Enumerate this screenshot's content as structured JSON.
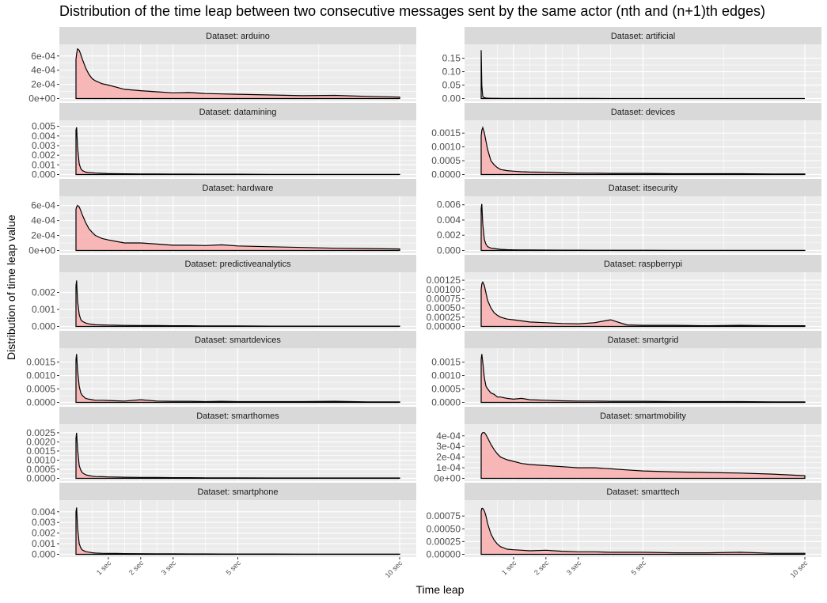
{
  "title": "Distribution of the time leap between two consecutive messages sent by the same actor (nth and (n+1)th edges)",
  "xlabel": "Time leap",
  "ylabel": "Distribution of time leap value",
  "colors": {
    "fill": "#f8b4b4",
    "line": "#000000",
    "strip": "#d9d9d9",
    "panel": "#ebebeb",
    "grid": "#ffffff"
  },
  "chart_data": {
    "type": "area",
    "x_unit": "seconds",
    "xlim": [
      0,
      10
    ],
    "x_ticks": [
      {
        "value": 1,
        "label": "1 sec"
      },
      {
        "value": 2,
        "label": "2 sec"
      },
      {
        "value": 3,
        "label": "3 sec"
      },
      {
        "value": 5,
        "label": "5 sec"
      },
      {
        "value": 10,
        "label": "10 sec"
      }
    ],
    "x": [
      0,
      0.02,
      0.05,
      0.1,
      0.15,
      0.2,
      0.3,
      0.4,
      0.5,
      0.6,
      0.8,
      1,
      1.25,
      1.5,
      2,
      2.5,
      3,
      3.5,
      4,
      4.5,
      5,
      6,
      7,
      8,
      9,
      10
    ],
    "panels": [
      {
        "strip": "Dataset: arduino",
        "ylim": [
          0,
          0.00072
        ],
        "ticks": [
          0,
          0.0002,
          0.0004,
          0.0006
        ],
        "tick_labels": [
          "0e+00",
          "2e-04",
          "4e-04",
          "6e-04"
        ],
        "y": [
          0.00055,
          0.00063,
          0.0007,
          0.00068,
          0.00062,
          0.00055,
          0.00043,
          0.00034,
          0.00028,
          0.00025,
          0.00021,
          0.00019,
          0.00016,
          0.00013,
          0.00011,
          9.5e-05,
          8e-05,
          8.5e-05,
          7e-05,
          6.5e-05,
          6e-05,
          5e-05,
          4e-05,
          4.5e-05,
          3e-05,
          2e-05
        ]
      },
      {
        "strip": "Dataset: artificial",
        "ylim": [
          0,
          0.19
        ],
        "ticks": [
          0,
          0.05,
          0.1,
          0.15
        ],
        "tick_labels": [
          "0.00",
          "0.05",
          "0.10",
          "0.15"
        ],
        "y": [
          0.18,
          0.05,
          0.008,
          0.003,
          0.002,
          0.0015,
          0.001,
          0.001,
          0.0008,
          0.0006,
          0.0005,
          0.0004,
          0.0003,
          0.0003,
          0.0002,
          0.0002,
          0.0002,
          0.0002,
          0.0001,
          0.0001,
          0.0001,
          0.0001,
          0.0001,
          0.0001,
          0.0001,
          0.0001
        ]
      },
      {
        "strip": "Dataset: datamining",
        "ylim": [
          0,
          0.0053
        ],
        "ticks": [
          0,
          0.001,
          0.002,
          0.003,
          0.004,
          0.005
        ],
        "tick_labels": [
          "0.000",
          "0.001",
          "0.002",
          "0.003",
          "0.004",
          "0.005"
        ],
        "y": [
          0.0046,
          0.0049,
          0.0028,
          0.0011,
          0.0006,
          0.0004,
          0.00025,
          0.0002,
          0.00018,
          0.00015,
          0.00012,
          0.0001,
          8e-05,
          7e-05,
          6e-05,
          5e-05,
          4e-05,
          4e-05,
          3e-05,
          3e-05,
          3e-05,
          2e-05,
          2e-05,
          2e-05,
          2e-05,
          2e-05
        ]
      },
      {
        "strip": "Dataset: devices",
        "ylim": [
          0,
          0.00185
        ],
        "ticks": [
          0,
          0.0005,
          0.001,
          0.0015
        ],
        "tick_labels": [
          "0.0000",
          "0.0005",
          "0.0010",
          "0.0015"
        ],
        "y": [
          0.0014,
          0.0016,
          0.0017,
          0.0015,
          0.0012,
          0.0009,
          0.0005,
          0.00035,
          0.00025,
          0.00018,
          0.00014,
          0.00012,
          0.0001,
          9e-05,
          8e-05,
          6e-05,
          5e-05,
          5e-05,
          4e-05,
          4e-05,
          4e-05,
          3e-05,
          3e-05,
          3e-05,
          2e-05,
          2e-05
        ]
      },
      {
        "strip": "Dataset: hardware",
        "ylim": [
          0,
          0.00068
        ],
        "ticks": [
          0,
          0.0002,
          0.0004,
          0.0006
        ],
        "tick_labels": [
          "0e+00",
          "2e-04",
          "4e-04",
          "6e-04"
        ],
        "y": [
          0.00055,
          0.00058,
          0.0006,
          0.00058,
          0.00053,
          0.00047,
          0.00037,
          0.00029,
          0.00024,
          0.0002,
          0.00016,
          0.00014,
          0.00012,
          0.0001,
          0.0001,
          8.5e-05,
          7e-05,
          7e-05,
          6.5e-05,
          7.5e-05,
          6e-05,
          5e-05,
          4e-05,
          3e-05,
          2.5e-05,
          2e-05
        ]
      },
      {
        "strip": "Dataset: itsecurity",
        "ylim": [
          0,
          0.0067
        ],
        "ticks": [
          0,
          0.002,
          0.004,
          0.006
        ],
        "tick_labels": [
          "0.000",
          "0.002",
          "0.004",
          "0.006"
        ],
        "y": [
          0.0055,
          0.0061,
          0.0035,
          0.0014,
          0.0008,
          0.0005,
          0.0003,
          0.00025,
          0.0002,
          0.00015,
          0.0001,
          8e-05,
          7e-05,
          6e-05,
          5e-05,
          4e-05,
          4e-05,
          3e-05,
          3e-05,
          3e-05,
          3e-05,
          2e-05,
          2e-05,
          2e-05,
          2e-05,
          2e-05
        ]
      },
      {
        "strip": "Dataset: predictiveanalytics",
        "ylim": [
          0,
          0.003
        ],
        "ticks": [
          0,
          0.001,
          0.002
        ],
        "tick_labels": [
          "0.000",
          "0.001",
          "0.002"
        ],
        "y": [
          0.0024,
          0.0027,
          0.0015,
          0.0007,
          0.0004,
          0.0003,
          0.0002,
          0.00015,
          0.00012,
          0.0001,
          9e-05,
          8e-05,
          7e-05,
          6e-05,
          5e-05,
          5e-05,
          4e-05,
          4e-05,
          3e-05,
          3e-05,
          3e-05,
          2e-05,
          2e-05,
          2e-05,
          2e-05,
          2e-05
        ]
      },
      {
        "strip": "Dataset: raspberrypi",
        "ylim": [
          0,
          0.00138
        ],
        "ticks": [
          0,
          0.00025,
          0.0005,
          0.00075,
          0.001,
          0.00125
        ],
        "tick_labels": [
          "0.00000",
          "0.00025",
          "0.00050",
          "0.00075",
          "0.00100",
          "0.00125"
        ],
        "y": [
          0.001,
          0.00115,
          0.0012,
          0.0011,
          0.0009,
          0.0007,
          0.0005,
          0.00037,
          0.0003,
          0.00025,
          0.0002,
          0.00018,
          0.00015,
          0.00012,
          0.0001,
          8e-05,
          7e-05,
          0.0001,
          0.00018,
          4e-05,
          3e-05,
          3e-05,
          2e-05,
          3e-05,
          2e-05,
          2e-05
        ]
      },
      {
        "strip": "Dataset: smartdevices",
        "ylim": [
          0,
          0.0019
        ],
        "ticks": [
          0,
          0.0005,
          0.001,
          0.0015
        ],
        "tick_labels": [
          "0.0000",
          "0.0005",
          "0.0010",
          "0.0015"
        ],
        "y": [
          0.0016,
          0.0018,
          0.0012,
          0.0006,
          0.00035,
          0.00025,
          0.00015,
          0.00012,
          0.0001,
          8e-05,
          8e-05,
          7e-05,
          6e-05,
          5e-05,
          0.0001,
          5e-05,
          4e-05,
          4e-05,
          3e-05,
          4e-05,
          3e-05,
          3e-05,
          3e-05,
          4e-05,
          2e-05,
          2e-05
        ]
      },
      {
        "strip": "Dataset: smartgrid",
        "ylim": [
          0,
          0.0019
        ],
        "ticks": [
          0,
          0.0005,
          0.001,
          0.0015
        ],
        "tick_labels": [
          "0.0000",
          "0.0005",
          "0.0010",
          "0.0015"
        ],
        "y": [
          0.0016,
          0.0018,
          0.0015,
          0.0009,
          0.0006,
          0.0005,
          0.00035,
          0.0003,
          0.0002,
          0.0002,
          0.00015,
          0.00012,
          0.00015,
          0.0001,
          8e-05,
          6e-05,
          5e-05,
          5e-05,
          4e-05,
          4e-05,
          4e-05,
          3e-05,
          3e-05,
          3e-05,
          2e-05,
          2e-05
        ]
      },
      {
        "strip": "Dataset: smarthomes",
        "ylim": [
          0,
          0.0028
        ],
        "ticks": [
          0,
          0.0005,
          0.001,
          0.0015,
          0.002,
          0.0025
        ],
        "tick_labels": [
          "0.0000",
          "0.0005",
          "0.0010",
          "0.0015",
          "0.0020",
          "0.0025"
        ],
        "y": [
          0.0022,
          0.0025,
          0.0016,
          0.0007,
          0.00045,
          0.0003,
          0.0002,
          0.00015,
          0.00012,
          0.0001,
          9e-05,
          8e-05,
          7e-05,
          6e-05,
          5e-05,
          5e-05,
          4e-05,
          4e-05,
          3e-05,
          3e-05,
          3e-05,
          2e-05,
          2e-05,
          2e-05,
          2e-05,
          2e-05
        ]
      },
      {
        "strip": "Dataset: smartmobility",
        "ylim": [
          0,
          0.00048
        ],
        "ticks": [
          0,
          0.0001,
          0.0002,
          0.0003,
          0.0004
        ],
        "tick_labels": [
          "0e+00",
          "1e-04",
          "2e-04",
          "3e-04",
          "4e-04"
        ],
        "y": [
          0.0004,
          0.00042,
          0.00043,
          0.00043,
          0.00041,
          0.00038,
          0.00032,
          0.00027,
          0.00023,
          0.0002,
          0.000175,
          0.00016,
          0.00014,
          0.00013,
          0.00012,
          0.00011,
          0.0001,
          0.0001,
          9e-05,
          8e-05,
          7e-05,
          6e-05,
          5.5e-05,
          5e-05,
          4e-05,
          2.5e-05
        ]
      },
      {
        "strip": "Dataset: smartphone",
        "ylim": [
          0,
          0.0048
        ],
        "ticks": [
          0,
          0.001,
          0.002,
          0.003,
          0.004
        ],
        "tick_labels": [
          "0.000",
          "0.001",
          "0.002",
          "0.003",
          "0.004"
        ],
        "y": [
          0.004,
          0.0044,
          0.0025,
          0.001,
          0.0006,
          0.0004,
          0.00025,
          0.0002,
          0.00015,
          0.00012,
          0.0001,
          9e-05,
          8e-05,
          7e-05,
          6e-05,
          5e-05,
          5e-05,
          4e-05,
          4e-05,
          3e-05,
          3e-05,
          3e-05,
          2e-05,
          2e-05,
          2e-05,
          2e-05
        ]
      },
      {
        "strip": "Dataset: smarttech",
        "ylim": [
          0,
          0.001
        ],
        "ticks": [
          0,
          0.00025,
          0.0005,
          0.00075
        ],
        "tick_labels": [
          "0.00000",
          "0.00025",
          "0.00050",
          "0.00075"
        ],
        "y": [
          0.00085,
          0.0009,
          0.0009,
          0.00085,
          0.00075,
          0.0006,
          0.0004,
          0.00028,
          0.0002,
          0.00015,
          0.0001,
          9e-05,
          8e-05,
          7e-05,
          8e-05,
          6e-05,
          5e-05,
          5e-05,
          4e-05,
          4e-05,
          4e-05,
          3e-05,
          3e-05,
          4e-05,
          2e-05,
          2e-05
        ]
      }
    ]
  }
}
